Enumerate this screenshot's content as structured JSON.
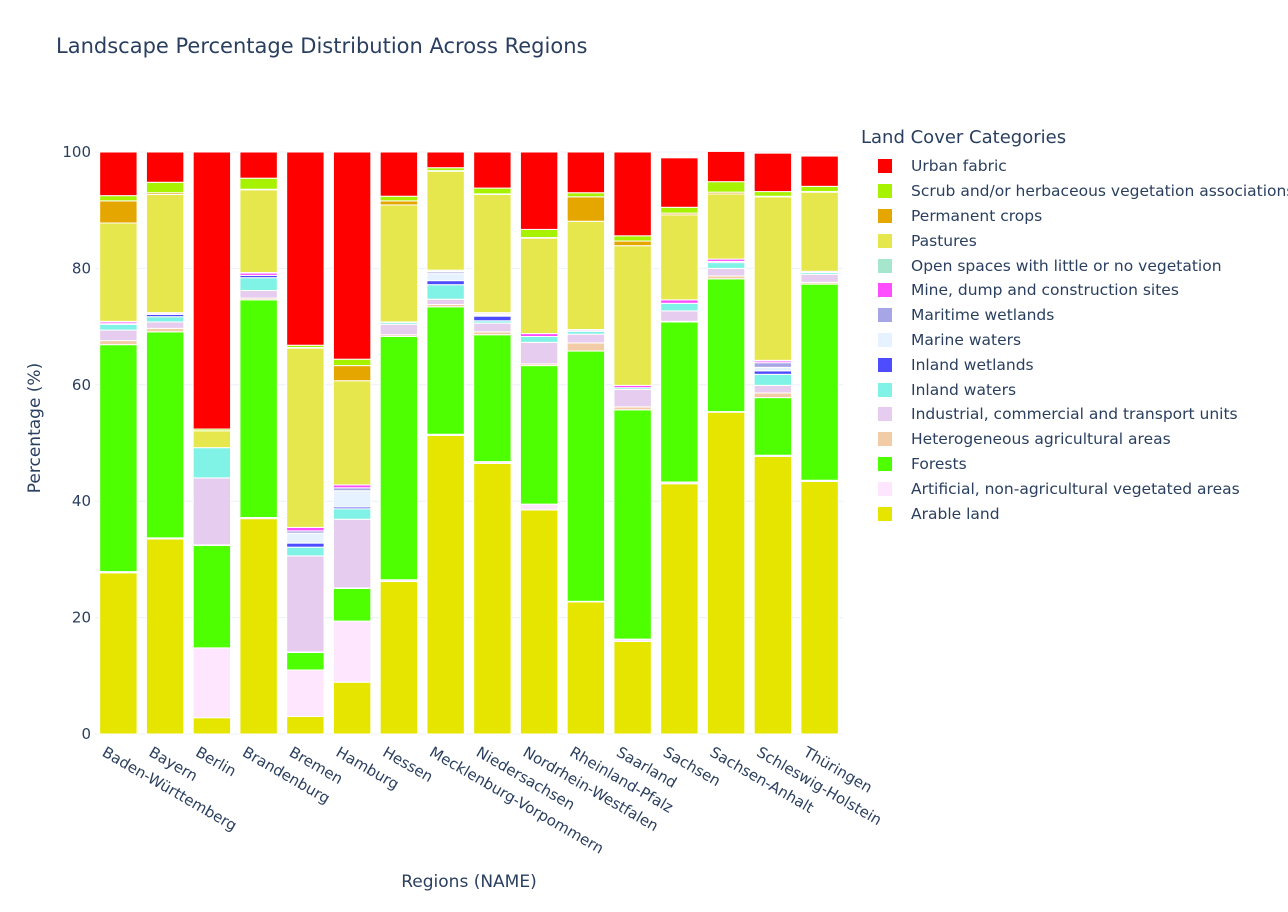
{
  "chart_data": {
    "type": "bar",
    "stacked": true,
    "title": "Landscape Percentage Distribution Across Regions",
    "xlabel": "Regions (NAME)",
    "ylabel": "Percentage (%)",
    "ylim": [
      0,
      100
    ],
    "yticks": [
      0,
      20,
      40,
      60,
      80,
      100
    ],
    "legend_title": "Land Cover Categories",
    "categories": [
      "Baden-Württemberg",
      "Bayern",
      "Berlin",
      "Brandenburg",
      "Bremen",
      "Hamburg",
      "Hessen",
      "Mecklenburg-Vorpommern",
      "Niedersachsen",
      "Nordrhein-Westfalen",
      "Rheinland-Pfalz",
      "Saarland",
      "Sachsen",
      "Sachsen-Anhalt",
      "Schleswig-Holstein",
      "Thüringen"
    ],
    "series": [
      {
        "name": "Arable land",
        "color": "#e5e500",
        "values": [
          27.7,
          33.5,
          2.8,
          37.0,
          3.0,
          8.9,
          26.2,
          51.3,
          46.5,
          38.5,
          22.7,
          15.9,
          43.0,
          55.3,
          47.7,
          43.4
        ]
      },
      {
        "name": "Artificial, non-agricultural vegetated areas",
        "color": "#ffe6ff",
        "values": [
          0.2,
          0.2,
          12.0,
          0.2,
          8.0,
          10.5,
          0.3,
          0.2,
          0.3,
          1.0,
          0.1,
          0.4,
          0.3,
          0.1,
          0.2,
          0.2
        ]
      },
      {
        "name": "Forests",
        "color": "#4dff00",
        "values": [
          39.0,
          35.4,
          17.6,
          37.4,
          3.0,
          5.6,
          41.8,
          21.9,
          21.8,
          23.8,
          43.0,
          39.4,
          27.5,
          22.8,
          9.9,
          33.7
        ]
      },
      {
        "name": "Heterogeneous agricultural areas",
        "color": "#f2cca6",
        "values": [
          0.7,
          0.6,
          0.1,
          0.3,
          0.1,
          0.1,
          0.3,
          0.4,
          0.5,
          0.3,
          1.4,
          0.5,
          0.1,
          0.5,
          0.8,
          0.3
        ]
      },
      {
        "name": "Industrial, commercial and transport units",
        "color": "#e6ccee",
        "values": [
          1.8,
          1.1,
          11.5,
          1.3,
          16.5,
          11.8,
          1.8,
          0.9,
          1.5,
          3.7,
          1.5,
          3.0,
          1.8,
          1.3,
          1.3,
          1.4
        ]
      },
      {
        "name": "Inland waters",
        "color": "#80f2e6",
        "values": [
          1.0,
          0.9,
          5.2,
          2.2,
          1.5,
          1.8,
          0.3,
          2.5,
          0.4,
          1.0,
          0.5,
          0.3,
          1.3,
          1.0,
          1.9,
          0.3
        ]
      },
      {
        "name": "Inland wetlands",
        "color": "#4d4dff",
        "values": [
          0.1,
          0.4,
          0.0,
          0.4,
          0.7,
          0.3,
          0.0,
          0.7,
          0.8,
          0.0,
          0.0,
          0.0,
          0.0,
          0.2,
          0.6,
          0.0
        ]
      },
      {
        "name": "Marine waters",
        "color": "#e6f2ff",
        "values": [
          0.0,
          0.0,
          0.0,
          0.0,
          1.7,
          2.8,
          0.0,
          1.2,
          0.2,
          0.0,
          0.0,
          0.0,
          0.0,
          0.0,
          0.6,
          0.0
        ]
      },
      {
        "name": "Maritime wetlands",
        "color": "#a6a6e6",
        "values": [
          0.0,
          0.0,
          0.0,
          0.0,
          0.4,
          0.5,
          0.0,
          0.3,
          0.1,
          0.0,
          0.0,
          0.0,
          0.0,
          0.0,
          0.8,
          0.0
        ]
      },
      {
        "name": "Mine, dump and construction sites",
        "color": "#ff4dff",
        "values": [
          0.3,
          0.2,
          0.0,
          0.4,
          0.6,
          0.5,
          0.1,
          0.1,
          0.2,
          0.5,
          0.2,
          0.4,
          0.6,
          0.4,
          0.3,
          0.2
        ]
      },
      {
        "name": "Open spaces with little or no vegetation",
        "color": "#a6e6cc",
        "values": [
          0.1,
          0.1,
          0.0,
          0.1,
          0.0,
          0.0,
          0.0,
          0.2,
          0.1,
          0.0,
          0.1,
          0.0,
          0.0,
          0.0,
          0.1,
          0.0
        ]
      },
      {
        "name": "Pastures",
        "color": "#e6e64d",
        "values": [
          16.9,
          20.3,
          2.9,
          14.2,
          30.8,
          17.9,
          20.1,
          17.0,
          20.3,
          16.4,
          18.6,
          24.0,
          14.6,
          11.2,
          28.1,
          13.6
        ]
      },
      {
        "name": "Permanent crops",
        "color": "#e6a600",
        "values": [
          3.8,
          0.3,
          0.0,
          0.1,
          0.1,
          2.6,
          0.7,
          0.1,
          0.1,
          0.1,
          4.2,
          0.8,
          0.3,
          0.3,
          0.1,
          0.1
        ]
      },
      {
        "name": "Scrub and/or herbaceous vegetation associations",
        "color": "#a6f200",
        "values": [
          0.9,
          1.8,
          0.3,
          1.9,
          0.4,
          1.1,
          0.8,
          0.5,
          1.0,
          1.4,
          0.7,
          0.9,
          1.0,
          1.8,
          0.8,
          0.9
        ]
      },
      {
        "name": "Urban fabric",
        "color": "#ff0000",
        "values": [
          7.5,
          5.2,
          47.6,
          4.5,
          33.2,
          35.6,
          7.6,
          2.7,
          6.2,
          13.3,
          7.0,
          14.4,
          8.5,
          5.2,
          6.6,
          5.2
        ]
      }
    ]
  }
}
